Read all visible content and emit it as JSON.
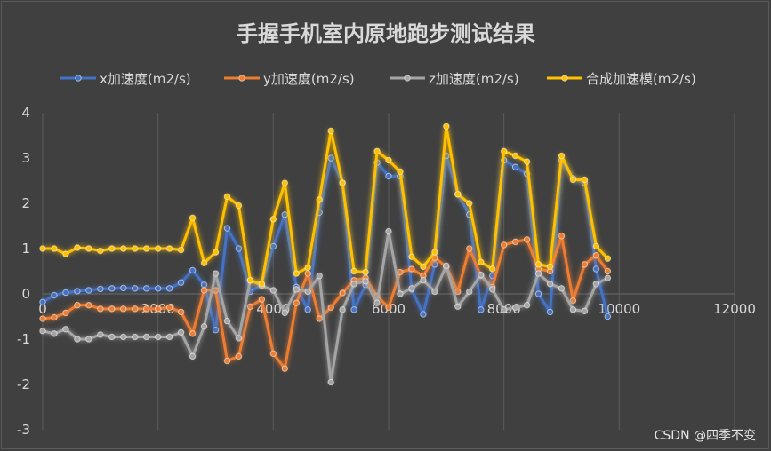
{
  "chart_data": {
    "type": "line",
    "title": "手握手机室内原地跑步测试结果",
    "xlabel": "",
    "ylabel": "",
    "xlim": [
      0,
      12000
    ],
    "ylim": [
      -3,
      4
    ],
    "x_ticks": [
      "0",
      "2000",
      "4000",
      "6000",
      "8000",
      "10000",
      "12000"
    ],
    "y_ticks": [
      "4",
      "3",
      "2",
      "1",
      "0",
      "-1",
      "-2",
      "-3"
    ],
    "grid": "vertical",
    "legend_position": "top",
    "x": [
      0,
      200,
      400,
      600,
      800,
      1000,
      1200,
      1400,
      1600,
      1800,
      2000,
      2200,
      2400,
      2600,
      2800,
      3000,
      3200,
      3400,
      3600,
      3800,
      4000,
      4200,
      4400,
      4600,
      4800,
      5000,
      5200,
      5400,
      5600,
      5800,
      6000,
      6200,
      6400,
      6600,
      6800,
      7000,
      7200,
      7400,
      7600,
      7800,
      8000,
      8200,
      8400,
      8600,
      8800,
      9000,
      9200,
      9400,
      9600,
      9800
    ],
    "series": [
      {
        "name": "x加速度(m2/s)",
        "color": "#4472c4",
        "values": [
          -0.18,
          -0.03,
          0.03,
          0.06,
          0.08,
          0.11,
          0.12,
          0.13,
          0.12,
          0.12,
          0.12,
          0.12,
          0.25,
          0.52,
          0.2,
          -0.8,
          1.45,
          1.0,
          0.05,
          0.2,
          1.05,
          1.75,
          0.15,
          -0.35,
          1.8,
          3.0,
          2.45,
          -0.35,
          0.2,
          2.9,
          2.6,
          2.6,
          0.1,
          -0.45,
          0.65,
          3.05,
          2.2,
          1.75,
          -0.35,
          0.4,
          2.95,
          2.8,
          2.65,
          0.0,
          -0.4,
          2.95,
          2.55,
          2.45,
          0.55,
          -0.5
        ]
      },
      {
        "name": "y加速度(m2/s)",
        "color": "#ed7d31",
        "values": [
          -0.55,
          -0.52,
          -0.42,
          -0.25,
          -0.25,
          -0.33,
          -0.33,
          -0.33,
          -0.33,
          -0.33,
          -0.33,
          -0.3,
          -0.4,
          -0.88,
          0.08,
          0.08,
          -1.48,
          -1.38,
          -0.28,
          -0.12,
          -1.32,
          -1.65,
          -0.2,
          0.45,
          -0.55,
          -0.3,
          0.02,
          0.3,
          0.35,
          -0.05,
          -0.3,
          0.48,
          0.55,
          0.4,
          0.8,
          0.6,
          0.05,
          1.0,
          0.4,
          0.15,
          1.08,
          1.15,
          1.2,
          0.55,
          0.5,
          1.28,
          -0.15,
          0.65,
          0.85,
          0.5
        ]
      },
      {
        "name": "z加速度(m2/s)",
        "color": "#a5a5a5",
        "values": [
          -0.82,
          -0.88,
          -0.78,
          -1.0,
          -1.0,
          -0.9,
          -0.95,
          -0.95,
          -0.95,
          -0.95,
          -0.95,
          -0.95,
          -0.85,
          -1.38,
          -0.72,
          0.45,
          -0.6,
          -0.98,
          0.3,
          0.18,
          0.08,
          -0.42,
          0.1,
          0.05,
          0.4,
          -1.95,
          -0.35,
          0.22,
          0.28,
          -0.2,
          1.38,
          0.0,
          0.12,
          0.3,
          0.05,
          0.62,
          -0.28,
          0.05,
          0.42,
          0.1,
          -0.35,
          -0.3,
          -0.25,
          0.45,
          0.22,
          0.12,
          -0.35,
          -0.38,
          0.22,
          0.35
        ]
      },
      {
        "name": "合成加速模(m2/s)",
        "color": "#ffc000",
        "values": [
          1.0,
          1.0,
          0.88,
          1.02,
          1.0,
          0.95,
          1.0,
          1.0,
          1.0,
          1.0,
          1.0,
          1.0,
          0.97,
          1.68,
          0.68,
          0.92,
          2.15,
          1.95,
          0.3,
          0.22,
          1.65,
          2.45,
          0.45,
          0.58,
          2.08,
          3.6,
          2.45,
          0.5,
          0.48,
          3.15,
          2.95,
          2.7,
          0.82,
          0.6,
          0.92,
          3.7,
          2.2,
          2.0,
          0.7,
          0.55,
          3.15,
          3.05,
          2.92,
          0.65,
          0.6,
          3.05,
          2.52,
          2.52,
          1.05,
          0.78
        ]
      }
    ]
  },
  "watermark": "CSDN @四季不变"
}
